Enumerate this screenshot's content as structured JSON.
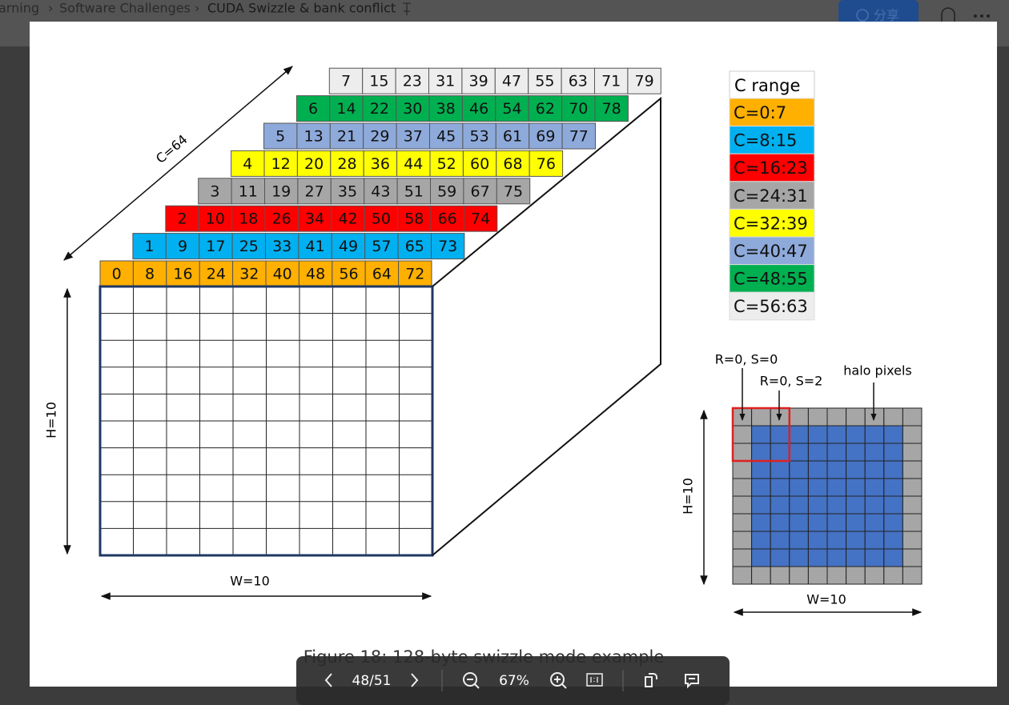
{
  "header": {
    "breadcrumb": [
      "arning",
      "Software Challenges",
      "CUDA Swizzle & bank conflict"
    ],
    "share": "分享"
  },
  "figure": {
    "stack": {
      "c_label": "C=64",
      "h_label": "H=10",
      "w_label": "W=10",
      "rows": [
        [
          0,
          8,
          16,
          24,
          32,
          40,
          48,
          56,
          64,
          72
        ],
        [
          1,
          9,
          17,
          25,
          33,
          41,
          49,
          57,
          65,
          73
        ],
        [
          2,
          10,
          18,
          26,
          34,
          42,
          50,
          58,
          66,
          74
        ],
        [
          3,
          11,
          19,
          27,
          35,
          43,
          51,
          59,
          67,
          75
        ],
        [
          4,
          12,
          20,
          28,
          36,
          44,
          52,
          60,
          68,
          76
        ],
        [
          5,
          13,
          21,
          29,
          37,
          45,
          53,
          61,
          69,
          77
        ],
        [
          6,
          14,
          22,
          30,
          38,
          46,
          54,
          62,
          70,
          78
        ],
        [
          7,
          15,
          23,
          31,
          39,
          47,
          55,
          63,
          71,
          79
        ]
      ]
    },
    "legend": {
      "title": "C range",
      "entries": [
        {
          "label": "C=0:7",
          "color": "#ffb000"
        },
        {
          "label": "C=8:15",
          "color": "#00b0f0"
        },
        {
          "label": "C=16:23",
          "color": "#ff0000"
        },
        {
          "label": "C=24:31",
          "color": "#a6a6a6"
        },
        {
          "label": "C=32:39",
          "color": "#ffff00"
        },
        {
          "label": "C=40:47",
          "color": "#8eaadb"
        },
        {
          "label": "C=48:55",
          "color": "#00b050"
        },
        {
          "label": "C=56:63",
          "color": "#ededed"
        }
      ]
    },
    "halo": {
      "labels": [
        "R=0, S=0",
        "R=0, S=2",
        "halo pixels"
      ],
      "h_label": "H=10",
      "w_label": "W=10",
      "halo_color": "#a6a6a6",
      "inner_color": "#4472c4"
    },
    "caption": "Figure 18: 128-byte swizzle mode example"
  },
  "toolbar": {
    "page": "48/51",
    "zoom": "67%"
  }
}
